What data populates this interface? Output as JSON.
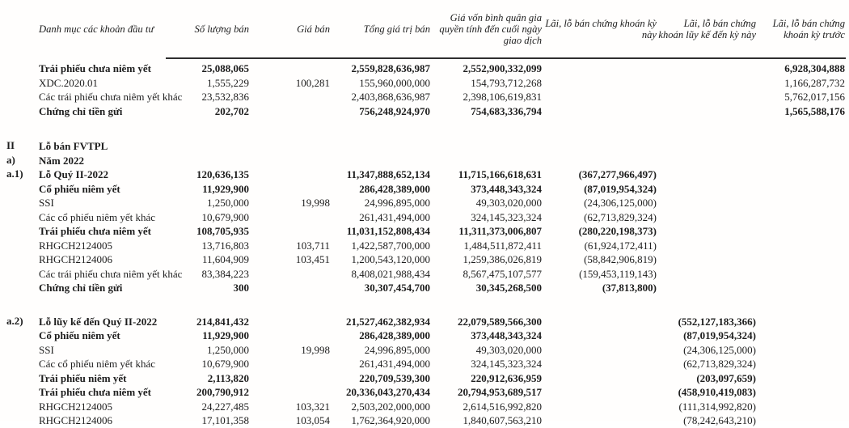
{
  "colors": {
    "text": "#1d1d1d",
    "rule": "#2e2e2e",
    "background": "#fffefd"
  },
  "table": {
    "headers": {
      "category": "Danh mục các khoản đầu tư",
      "qty": "Số lượng bán",
      "price": "Giá bán",
      "total": "Tổng giá trị bán",
      "cost": "Giá vốn bình quân gia quyền tính đến cuối ngày giao dịch",
      "pl_current": "Lãi, lỗ bán chứng khoán kỳ này",
      "pl_cumulative": "Lãi, lỗ bán chứng khoán lũy kế đến kỳ này",
      "pl_previous": "Lãi, lỗ bán chứng khoán kỳ trước"
    },
    "rows": [
      {
        "label": "Trái phiếu chưa niêm yết",
        "bold": true,
        "qty": "25,088,065",
        "total": "2,559,828,636,987",
        "cost": "2,552,900,332,099",
        "pl_previous": "6,928,304,888"
      },
      {
        "label": "XDC.2020.01",
        "bold": false,
        "qty": "1,555,229",
        "price": "100,281",
        "total": "155,960,000,000",
        "cost": "154,793,712,268",
        "pl_previous": "1,166,287,732"
      },
      {
        "label": "Các trái phiếu chưa niêm yết khác",
        "bold": false,
        "qty": "23,532,836",
        "total": "2,403,868,636,987",
        "cost": "2,398,106,619,831",
        "pl_previous": "5,762,017,156"
      },
      {
        "label": "Chứng chỉ tiền gửi",
        "bold": true,
        "qty": "202,702",
        "total": "756,248,924,970",
        "cost": "754,683,336,794",
        "pl_previous": "1,565,588,176"
      },
      {
        "ref": "II",
        "label": "Lỗ bán FVTPL",
        "bold": true,
        "gap_before": 26
      },
      {
        "ref": "a)",
        "label": "Năm 2022",
        "bold": true
      },
      {
        "ref": "a.1)",
        "label": "Lỗ Quý II-2022",
        "bold": true,
        "qty": "120,636,135",
        "total": "11,347,888,652,134",
        "cost": "11,715,166,618,631",
        "pl_current": "(367,277,966,497)"
      },
      {
        "label": "Cổ phiếu niêm yết",
        "bold": true,
        "qty": "11,929,900",
        "total": "286,428,389,000",
        "cost": "373,448,343,324",
        "pl_current": "(87,019,954,324)"
      },
      {
        "label": "SSI",
        "bold": false,
        "qty": "1,250,000",
        "price": "19,998",
        "total": "24,996,895,000",
        "cost": "49,303,020,000",
        "pl_current": "(24,306,125,000)"
      },
      {
        "label": "Các cổ phiếu niêm yết khác",
        "bold": false,
        "qty": "10,679,900",
        "total": "261,431,494,000",
        "cost": "324,145,323,324",
        "pl_current": "(62,713,829,324)"
      },
      {
        "label": "Trái phiếu chưa niêm yết",
        "bold": true,
        "qty": "108,705,935",
        "total": "11,031,152,808,434",
        "cost": "11,311,373,006,807",
        "pl_current": "(280,220,198,373)"
      },
      {
        "label": "RHGCH2124005",
        "bold": false,
        "qty": "13,716,803",
        "price": "103,711",
        "total": "1,422,587,700,000",
        "cost": "1,484,511,872,411",
        "pl_current": "(61,924,172,411)"
      },
      {
        "label": "RHGCH2124006",
        "bold": false,
        "qty": "11,604,909",
        "price": "103,451",
        "total": "1,200,543,120,000",
        "cost": "1,259,386,026,819",
        "pl_current": "(58,842,906,819)"
      },
      {
        "label": "Các trái phiếu chưa niêm yết khác",
        "bold": false,
        "qty": "83,384,223",
        "total": "8,408,021,988,434",
        "cost": "8,567,475,107,577",
        "pl_current": "(159,453,119,143)"
      },
      {
        "label": "Chứng chỉ tiền gửi",
        "bold": true,
        "qty": "300",
        "total": "30,307,454,700",
        "cost": "30,345,268,500",
        "pl_current": "(37,813,800)"
      },
      {
        "ref": "a.2)",
        "label": "Lỗ lũy kế đến Quý II-2022",
        "bold": true,
        "gap_before": 24,
        "qty": "214,841,432",
        "total": "21,527,462,382,934",
        "cost": "22,079,589,566,300",
        "pl_cumulative": "(552,127,183,366)"
      },
      {
        "label": "Cổ phiếu niêm yết",
        "bold": true,
        "qty": "11,929,900",
        "total": "286,428,389,000",
        "cost": "373,448,343,324",
        "pl_cumulative": "(87,019,954,324)"
      },
      {
        "label": "SSI",
        "bold": false,
        "qty": "1,250,000",
        "price": "19,998",
        "total": "24,996,895,000",
        "cost": "49,303,020,000",
        "pl_cumulative": "(24,306,125,000)"
      },
      {
        "label": "Các cổ phiếu niêm yết khác",
        "bold": false,
        "qty": "10,679,900",
        "total": "261,431,494,000",
        "cost": "324,145,323,324",
        "pl_cumulative": "(62,713,829,324)"
      },
      {
        "label": "Trái phiếu niêm yết",
        "bold": true,
        "qty": "2,113,820",
        "total": "220,709,539,300",
        "cost": "220,912,636,959",
        "pl_cumulative": "(203,097,659)"
      },
      {
        "label": "Trái phiếu chưa niêm yết",
        "bold": true,
        "qty": "200,790,912",
        "total": "20,336,043,270,434",
        "cost": "20,794,953,689,517",
        "pl_cumulative": "(458,910,419,083)"
      },
      {
        "label": "RHGCH2124005",
        "bold": false,
        "qty": "24,227,485",
        "price": "103,321",
        "total": "2,503,202,000,000",
        "cost": "2,614,516,992,820",
        "pl_cumulative": "(111,314,992,820)"
      },
      {
        "label": "RHGCH2124006",
        "bold": false,
        "qty": "17,101,358",
        "price": "103,054",
        "total": "1,762,364,920,000",
        "cost": "1,840,607,563,210",
        "pl_cumulative": "(78,242,643,210)"
      }
    ]
  }
}
